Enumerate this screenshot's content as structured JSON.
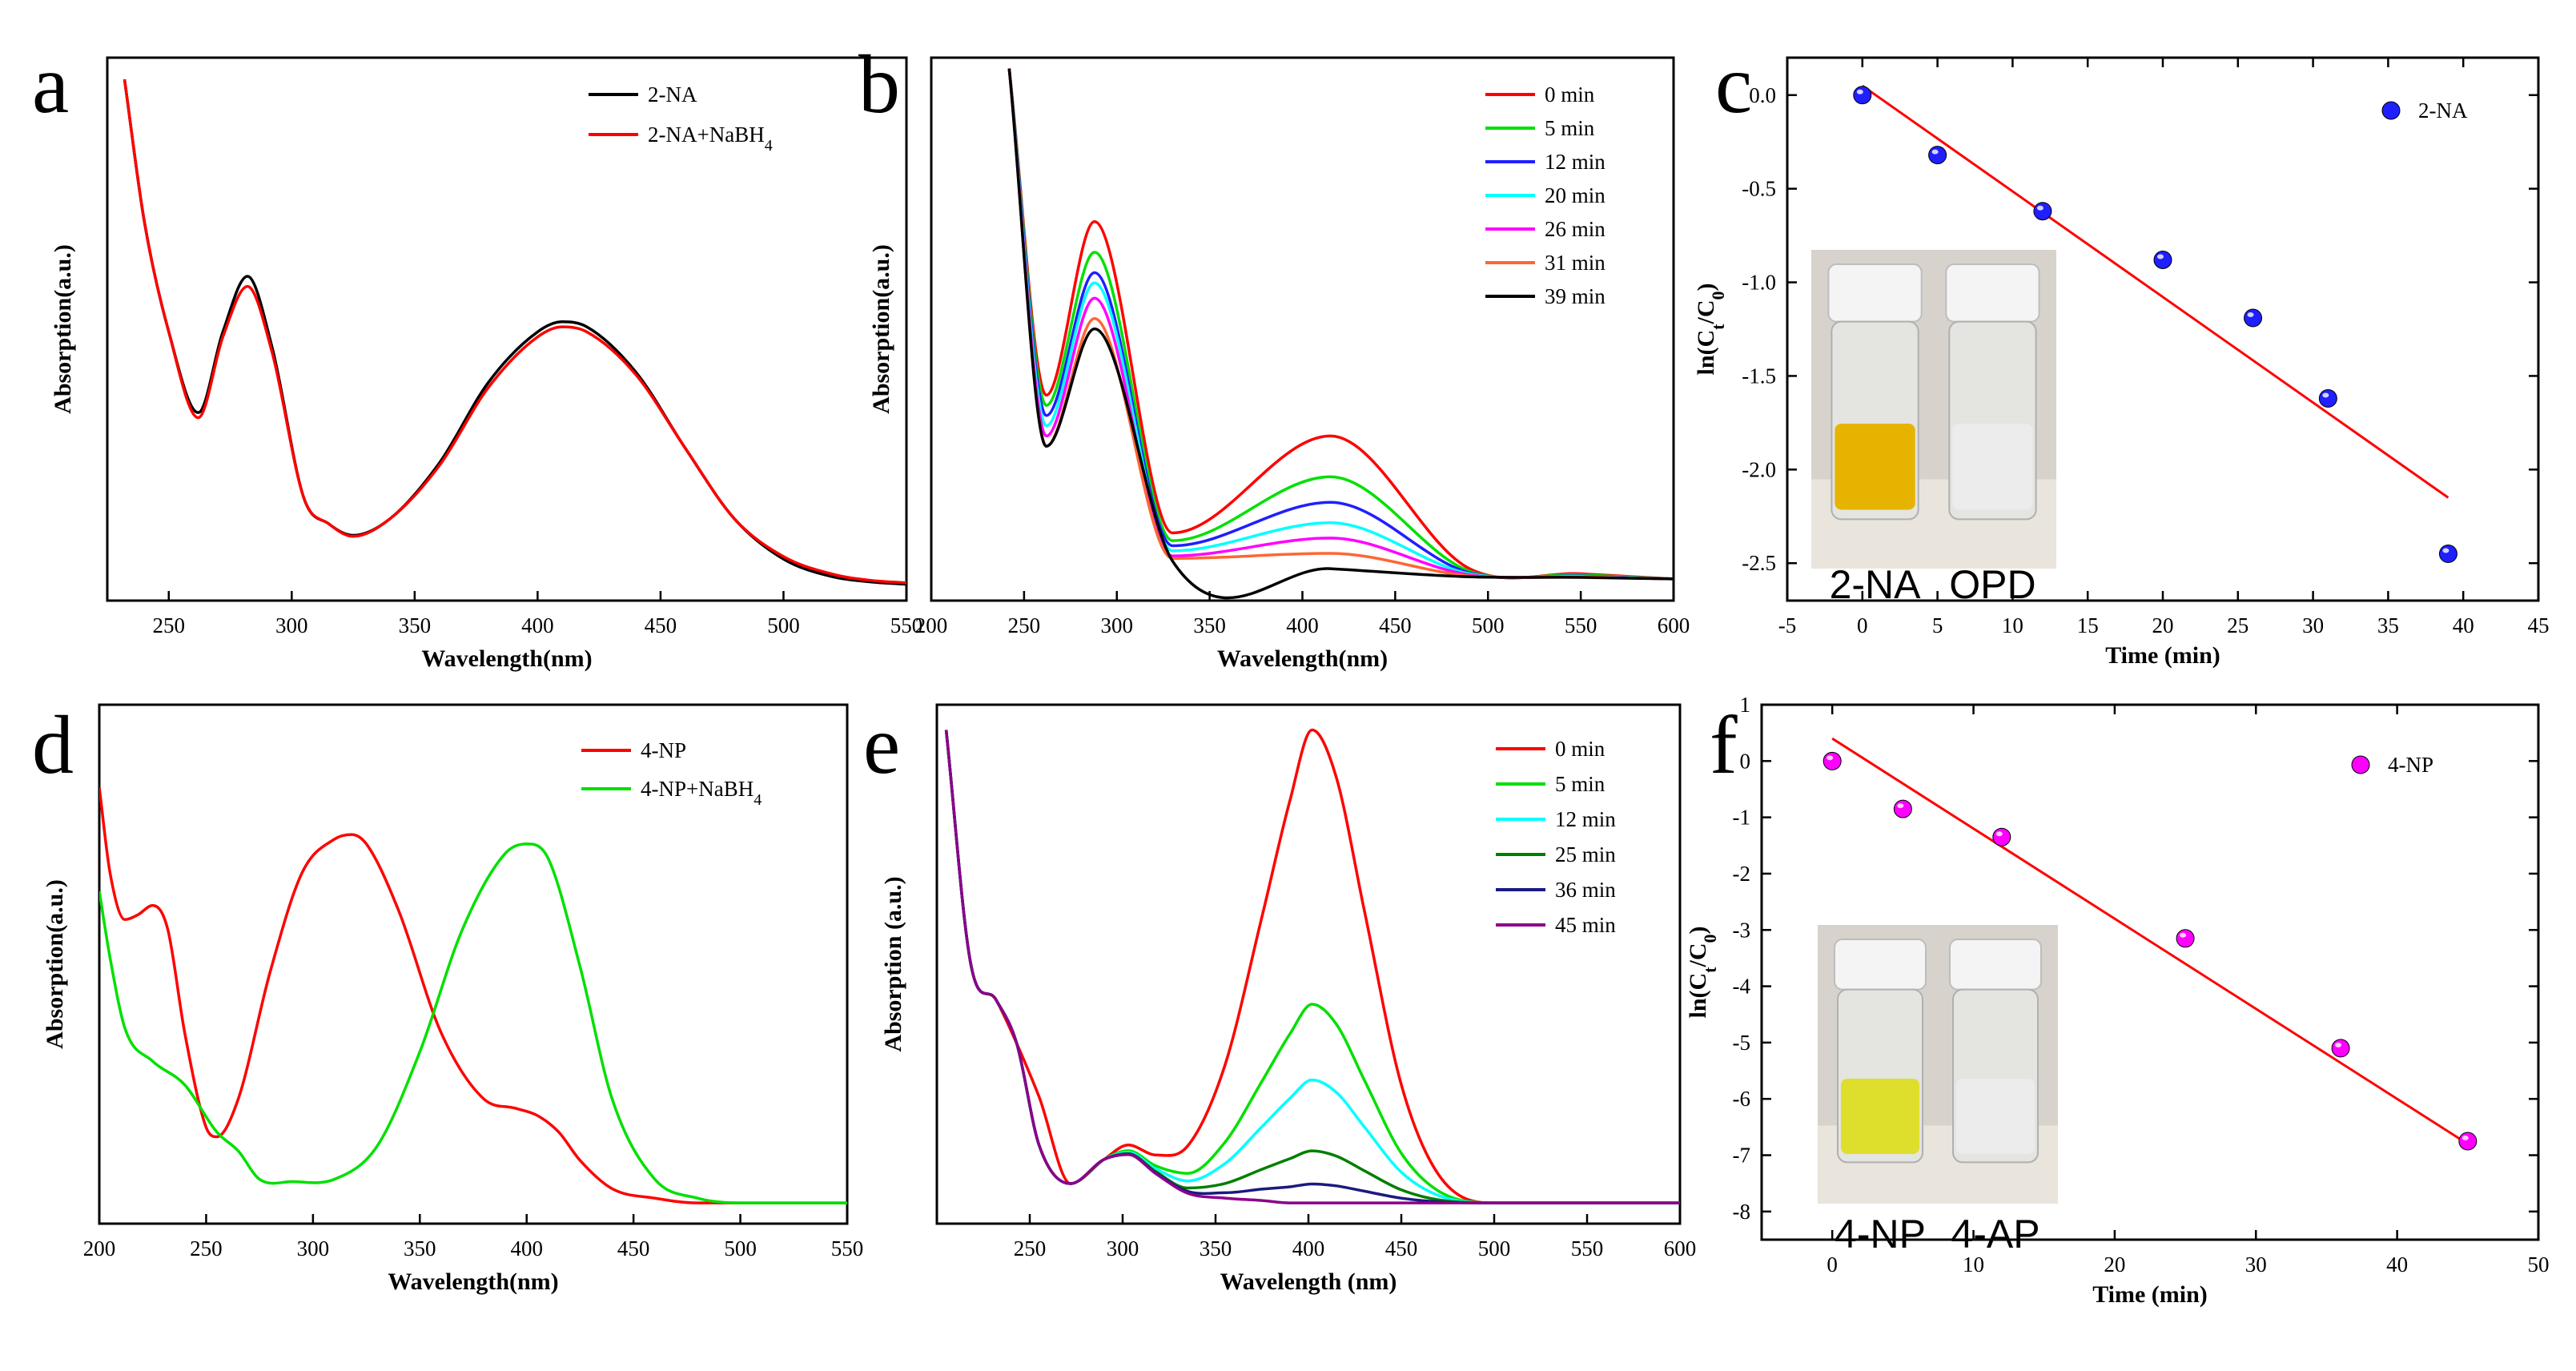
{
  "figure": {
    "colors": {
      "black": "#000000",
      "red": "#ff0000",
      "green": "#00e000",
      "blue": "#1f1fff",
      "cyan": "#00ffff",
      "magenta": "#ff00ff",
      "orange": "#ff6633",
      "darkgreen": "#007f00",
      "navy": "#1a1a80",
      "purple": "#8b008b"
    }
  },
  "chart_data": [
    {
      "id": "a",
      "panel_label": "a",
      "type": "line",
      "xlabel": "Wavelength(nm)",
      "ylabel": "Absorption(a.u.)",
      "xlim": [
        225,
        550
      ],
      "ylim": [
        0,
        1
      ],
      "xticks": [
        250,
        300,
        350,
        400,
        450,
        500,
        550
      ],
      "yticks": [],
      "series": [
        {
          "name": "2-NA",
          "color": "#000000",
          "x": [
            232,
            240,
            250,
            262,
            272,
            282,
            292,
            305,
            315,
            325,
            340,
            360,
            380,
            400,
            410,
            420,
            440,
            460,
            480,
            500,
            520,
            535,
            550
          ],
          "y": [
            1.0,
            0.72,
            0.5,
            0.34,
            0.5,
            0.61,
            0.47,
            0.17,
            0.12,
            0.097,
            0.13,
            0.24,
            0.4,
            0.5,
            0.52,
            0.51,
            0.42,
            0.27,
            0.13,
            0.05,
            0.015,
            0.005,
            0.0
          ]
        },
        {
          "name": "2-NA+NaBH4",
          "legend_label": "2-NA+NaBH",
          "legend_sub": "4",
          "color": "#ff0000",
          "x": [
            232,
            240,
            250,
            262,
            272,
            282,
            292,
            305,
            315,
            325,
            340,
            360,
            380,
            400,
            410,
            420,
            440,
            460,
            480,
            500,
            520,
            535,
            550
          ],
          "y": [
            1.0,
            0.72,
            0.5,
            0.33,
            0.49,
            0.59,
            0.46,
            0.17,
            0.12,
            0.095,
            0.13,
            0.235,
            0.39,
            0.49,
            0.51,
            0.5,
            0.415,
            0.27,
            0.13,
            0.055,
            0.02,
            0.008,
            0.003
          ]
        }
      ]
    },
    {
      "id": "b",
      "panel_label": "b",
      "type": "line",
      "xlabel": "Wavelength(nm)",
      "ylabel": "Absorption(a.u.)",
      "xlim": [
        200,
        600
      ],
      "ylim": [
        0,
        1
      ],
      "xticks": [
        200,
        250,
        300,
        350,
        400,
        450,
        500,
        550,
        600
      ],
      "yticks": [],
      "peak_x": [
        242,
        262,
        288,
        330,
        415,
        490,
        550,
        600
      ],
      "series": [
        {
          "name": "0 min",
          "color": "#ff0000",
          "y": [
            1.0,
            0.36,
            0.7,
            0.09,
            0.28,
            0.02,
            0.01,
            0.0
          ]
        },
        {
          "name": "5 min",
          "color": "#00e000",
          "y": [
            1.0,
            0.34,
            0.64,
            0.075,
            0.2,
            0.015,
            0.008,
            0.0
          ]
        },
        {
          "name": "12 min",
          "color": "#1f1fff",
          "y": [
            1.0,
            0.32,
            0.6,
            0.065,
            0.15,
            0.012,
            0.006,
            0.0
          ]
        },
        {
          "name": "20 min",
          "color": "#00ffff",
          "y": [
            1.0,
            0.3,
            0.58,
            0.055,
            0.11,
            0.01,
            0.005,
            0.0
          ]
        },
        {
          "name": "26 min",
          "color": "#ff00ff",
          "y": [
            1.0,
            0.28,
            0.55,
            0.045,
            0.08,
            0.008,
            0.004,
            0.0
          ]
        },
        {
          "name": "31 min",
          "color": "#ff6633",
          "y": [
            1.0,
            0.26,
            0.51,
            0.04,
            0.05,
            0.006,
            0.004,
            0.0
          ]
        },
        {
          "name": "39 min",
          "color": "#000000",
          "y": [
            1.0,
            0.26,
            0.49,
            0.035,
            0.02,
            0.004,
            0.003,
            0.0
          ]
        }
      ]
    },
    {
      "id": "c",
      "panel_label": "c",
      "type": "scatter",
      "xlabel": "Time (min)",
      "ylabel": "ln(Ct/C0)",
      "xlim": [
        -5,
        45
      ],
      "ylim": [
        -2.7,
        0.2
      ],
      "xticks": [
        -5,
        0,
        5,
        10,
        15,
        20,
        25,
        30,
        35,
        40,
        45
      ],
      "yticks": [
        0.0,
        -0.5,
        -1.0,
        -1.5,
        -2.0,
        -2.5
      ],
      "ytick_labels": [
        "0.0",
        "-0.5",
        "-1.0",
        "-1.5",
        "-2.0",
        "-2.5"
      ],
      "series": [
        {
          "name": "2-NA",
          "color": "#1f1fff",
          "x": [
            0,
            5,
            12,
            20,
            26,
            31,
            39
          ],
          "y": [
            0.0,
            -0.32,
            -0.62,
            -0.88,
            -1.19,
            -1.62,
            -2.45
          ]
        }
      ],
      "fit": {
        "x": [
          0,
          39
        ],
        "y": [
          0.05,
          -2.15
        ],
        "color": "#ff0000"
      },
      "inset": {
        "left_label": "2-NA",
        "right_label": "OPD",
        "left_liquid": "#e6b400",
        "right_liquid": "#ececec"
      }
    },
    {
      "id": "d",
      "panel_label": "d",
      "type": "line",
      "xlabel": "Wavelength(nm)",
      "ylabel": "Absorption(a.u.)",
      "xlim": [
        200,
        550
      ],
      "ylim": [
        0,
        1
      ],
      "xticks": [
        200,
        250,
        300,
        350,
        400,
        450,
        500,
        550
      ],
      "yticks": [],
      "series": [
        {
          "name": "4-NP",
          "color": "#ff0000",
          "x": [
            200,
            205,
            212,
            218,
            225,
            232,
            240,
            250,
            255,
            265,
            280,
            295,
            310,
            318,
            325,
            340,
            360,
            380,
            395,
            405,
            415,
            425,
            440,
            460,
            480,
            500,
            550
          ],
          "y": [
            0.88,
            0.7,
            0.6,
            0.61,
            0.63,
            0.58,
            0.36,
            0.16,
            0.14,
            0.22,
            0.49,
            0.7,
            0.77,
            0.78,
            0.76,
            0.62,
            0.36,
            0.22,
            0.2,
            0.185,
            0.15,
            0.09,
            0.03,
            0.01,
            0.0,
            0.0,
            0.0
          ]
        },
        {
          "name": "4-NP+NaBH4",
          "legend_label": "4-NP+NaBH",
          "legend_sub": "4",
          "color": "#00e000",
          "x": [
            200,
            205,
            212,
            225,
            240,
            255,
            265,
            275,
            290,
            310,
            330,
            350,
            370,
            390,
            400,
            410,
            425,
            440,
            460,
            480,
            500,
            550
          ],
          "y": [
            0.66,
            0.52,
            0.37,
            0.3,
            0.25,
            0.15,
            0.11,
            0.05,
            0.045,
            0.05,
            0.12,
            0.32,
            0.58,
            0.74,
            0.76,
            0.73,
            0.5,
            0.22,
            0.05,
            0.01,
            0.0,
            0.0
          ]
        }
      ]
    },
    {
      "id": "e",
      "panel_label": "e",
      "type": "line",
      "xlabel": "Wavelength (nm)",
      "ylabel": "Absorption (a.u.)",
      "xlim": [
        200,
        600
      ],
      "ylim": [
        0,
        1
      ],
      "xticks": [
        250,
        300,
        350,
        400,
        450,
        500,
        550,
        600
      ],
      "yticks": [],
      "series": [
        {
          "name": "0  min",
          "color": "#ff0000",
          "peak": 1.0
        },
        {
          "name": "5 min",
          "color": "#00e000",
          "peak": 0.42
        },
        {
          "name": "12 min",
          "color": "#00ffff",
          "peak": 0.26
        },
        {
          "name": "25 min",
          "color": "#007f00",
          "peak": 0.11
        },
        {
          "name": "36 min",
          "color": "#1a1a80",
          "peak": 0.04
        },
        {
          "name": "45 min",
          "color": "#8b008b",
          "peak": 0.0
        }
      ]
    },
    {
      "id": "f",
      "panel_label": "f",
      "type": "scatter",
      "xlabel": "Time (min)",
      "ylabel": "ln(Ct/C0)",
      "xlim": [
        -5,
        50
      ],
      "ylim": [
        -8.5,
        1
      ],
      "xticks": [
        0,
        10,
        20,
        30,
        40,
        50
      ],
      "yticks": [
        1,
        0,
        -1,
        -2,
        -3,
        -4,
        -5,
        -6,
        -7,
        -8
      ],
      "ytick_labels": [
        "1",
        "0",
        "-1",
        "-2",
        "-3",
        "-4",
        "-5",
        "-6",
        "-7",
        "-8"
      ],
      "series": [
        {
          "name": "4-NP",
          "color": "#ff00ff",
          "x": [
            0,
            5,
            12,
            25,
            36,
            45
          ],
          "y": [
            0.0,
            -0.85,
            -1.35,
            -3.15,
            -5.1,
            -6.75
          ]
        }
      ],
      "fit": {
        "x": [
          0,
          45
        ],
        "y": [
          0.4,
          -6.8
        ],
        "color": "#ff0000"
      },
      "inset": {
        "left_label": "4-NP",
        "right_label": "4-AP",
        "left_liquid": "#dede2c",
        "right_liquid": "#ececec"
      }
    }
  ]
}
